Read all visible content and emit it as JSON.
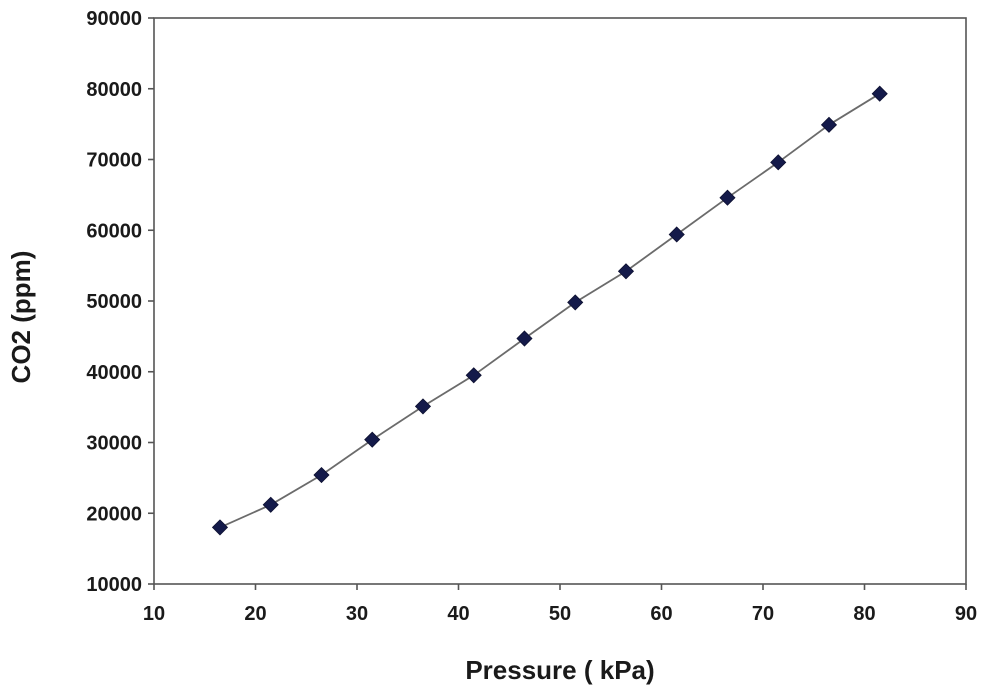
{
  "chart_data": {
    "type": "line",
    "title": "",
    "xlabel": "Pressure ( kPa)",
    "ylabel": "CO2  (ppm)",
    "xlim": [
      10,
      90
    ],
    "ylim": [
      10000,
      90000
    ],
    "xticks": [
      "10",
      "20",
      "30",
      "40",
      "50",
      "60",
      "70",
      "80",
      "90"
    ],
    "yticks": [
      "10000",
      "20000",
      "30000",
      "40000",
      "50000",
      "60000",
      "70000",
      "80000",
      "90000"
    ],
    "grid": false,
    "legend": "none",
    "marker": "diamond",
    "marker_color": "#141a4a",
    "line_color": "#6b6b6b",
    "series": [
      {
        "x": [
          16.5,
          21.5,
          26.5,
          31.5,
          36.5,
          41.5,
          46.5,
          51.5,
          56.5,
          61.5,
          66.5,
          71.5,
          76.5,
          81.5
        ],
        "y": [
          18000,
          21200,
          25400,
          30400,
          35100,
          39500,
          44700,
          49800,
          54200,
          59400,
          64600,
          69600,
          74900,
          79300
        ]
      }
    ]
  }
}
